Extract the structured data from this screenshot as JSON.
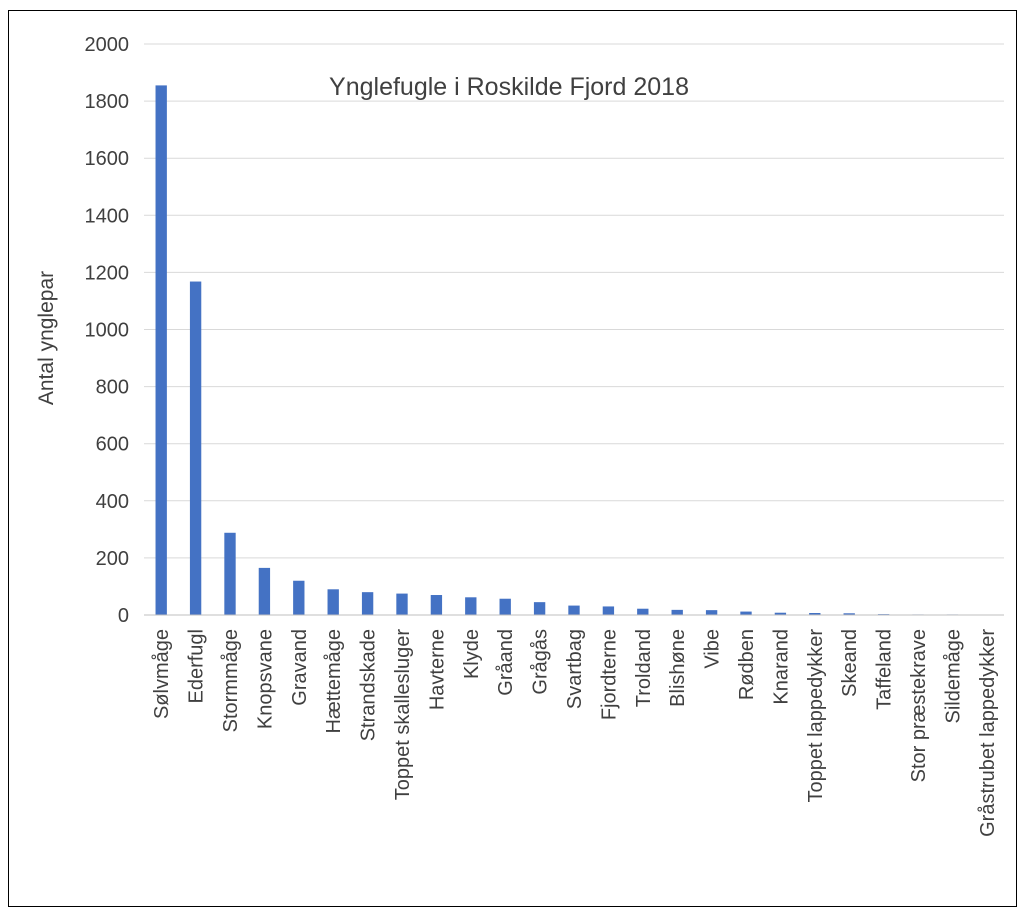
{
  "chart_data": {
    "type": "bar",
    "title": "Ynglefugle i Roskilde Fjord 2018",
    "xlabel": "",
    "ylabel": "Antal ynglepar",
    "ylim": [
      0,
      2000
    ],
    "yticks": [
      "0",
      "200",
      "400",
      "600",
      "800",
      "1000",
      "1200",
      "1400",
      "1600",
      "1800",
      "2000"
    ],
    "grid": true,
    "bar_color": "#4472c4",
    "categories": [
      "Sølvmåge",
      "Ederfugl",
      "Stormmåge",
      "Knopsvane",
      "Gravand",
      "Hættemåge",
      "Strandskade",
      "Toppet skallesluger",
      "Havterne",
      "Klyde",
      "Gråand",
      "Grågås",
      "Svartbag",
      "Fjordterne",
      "Troldand",
      "Blishøne",
      "Vibe",
      "Rødben",
      "Knarand",
      "Toppet lappedykker",
      "Skeand",
      "Taffeland",
      "Stor præstekrave",
      "Sildemåge",
      "Gråstrubet lappedykker"
    ],
    "values": [
      1855,
      1168,
      288,
      165,
      120,
      90,
      80,
      75,
      70,
      62,
      57,
      45,
      33,
      30,
      22,
      18,
      17,
      12,
      8,
      7,
      6,
      3,
      2,
      2,
      1
    ]
  }
}
